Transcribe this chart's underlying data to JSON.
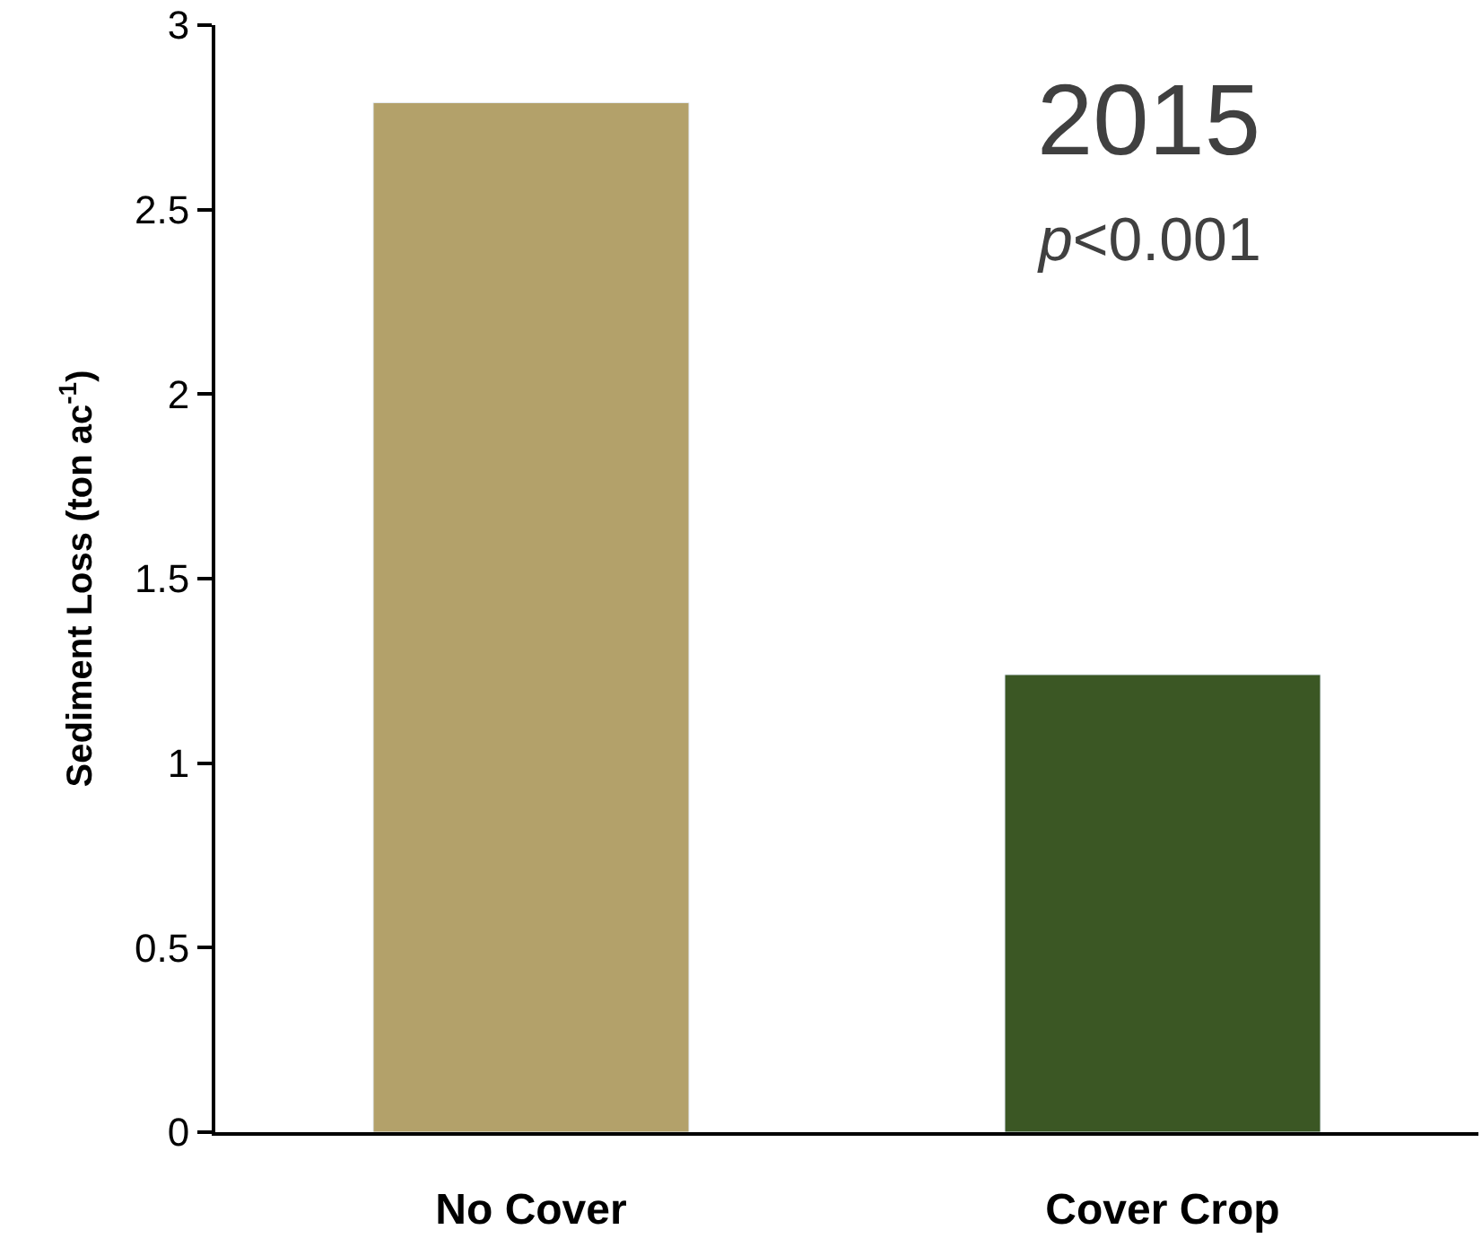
{
  "chart_data": {
    "type": "bar",
    "categories": [
      "No Cover",
      "Cover Crop"
    ],
    "values": [
      2.79,
      1.24
    ],
    "colors": [
      "#b3a16a",
      "#3b5724"
    ],
    "ylabel": "Sediment Loss (ton ac$^{-1}$)",
    "ylim": [
      0,
      3
    ],
    "yticks": [
      0,
      0.5,
      1,
      1.5,
      2,
      2.5,
      3
    ],
    "annotations": [
      "2015",
      "p<0.001"
    ]
  }
}
